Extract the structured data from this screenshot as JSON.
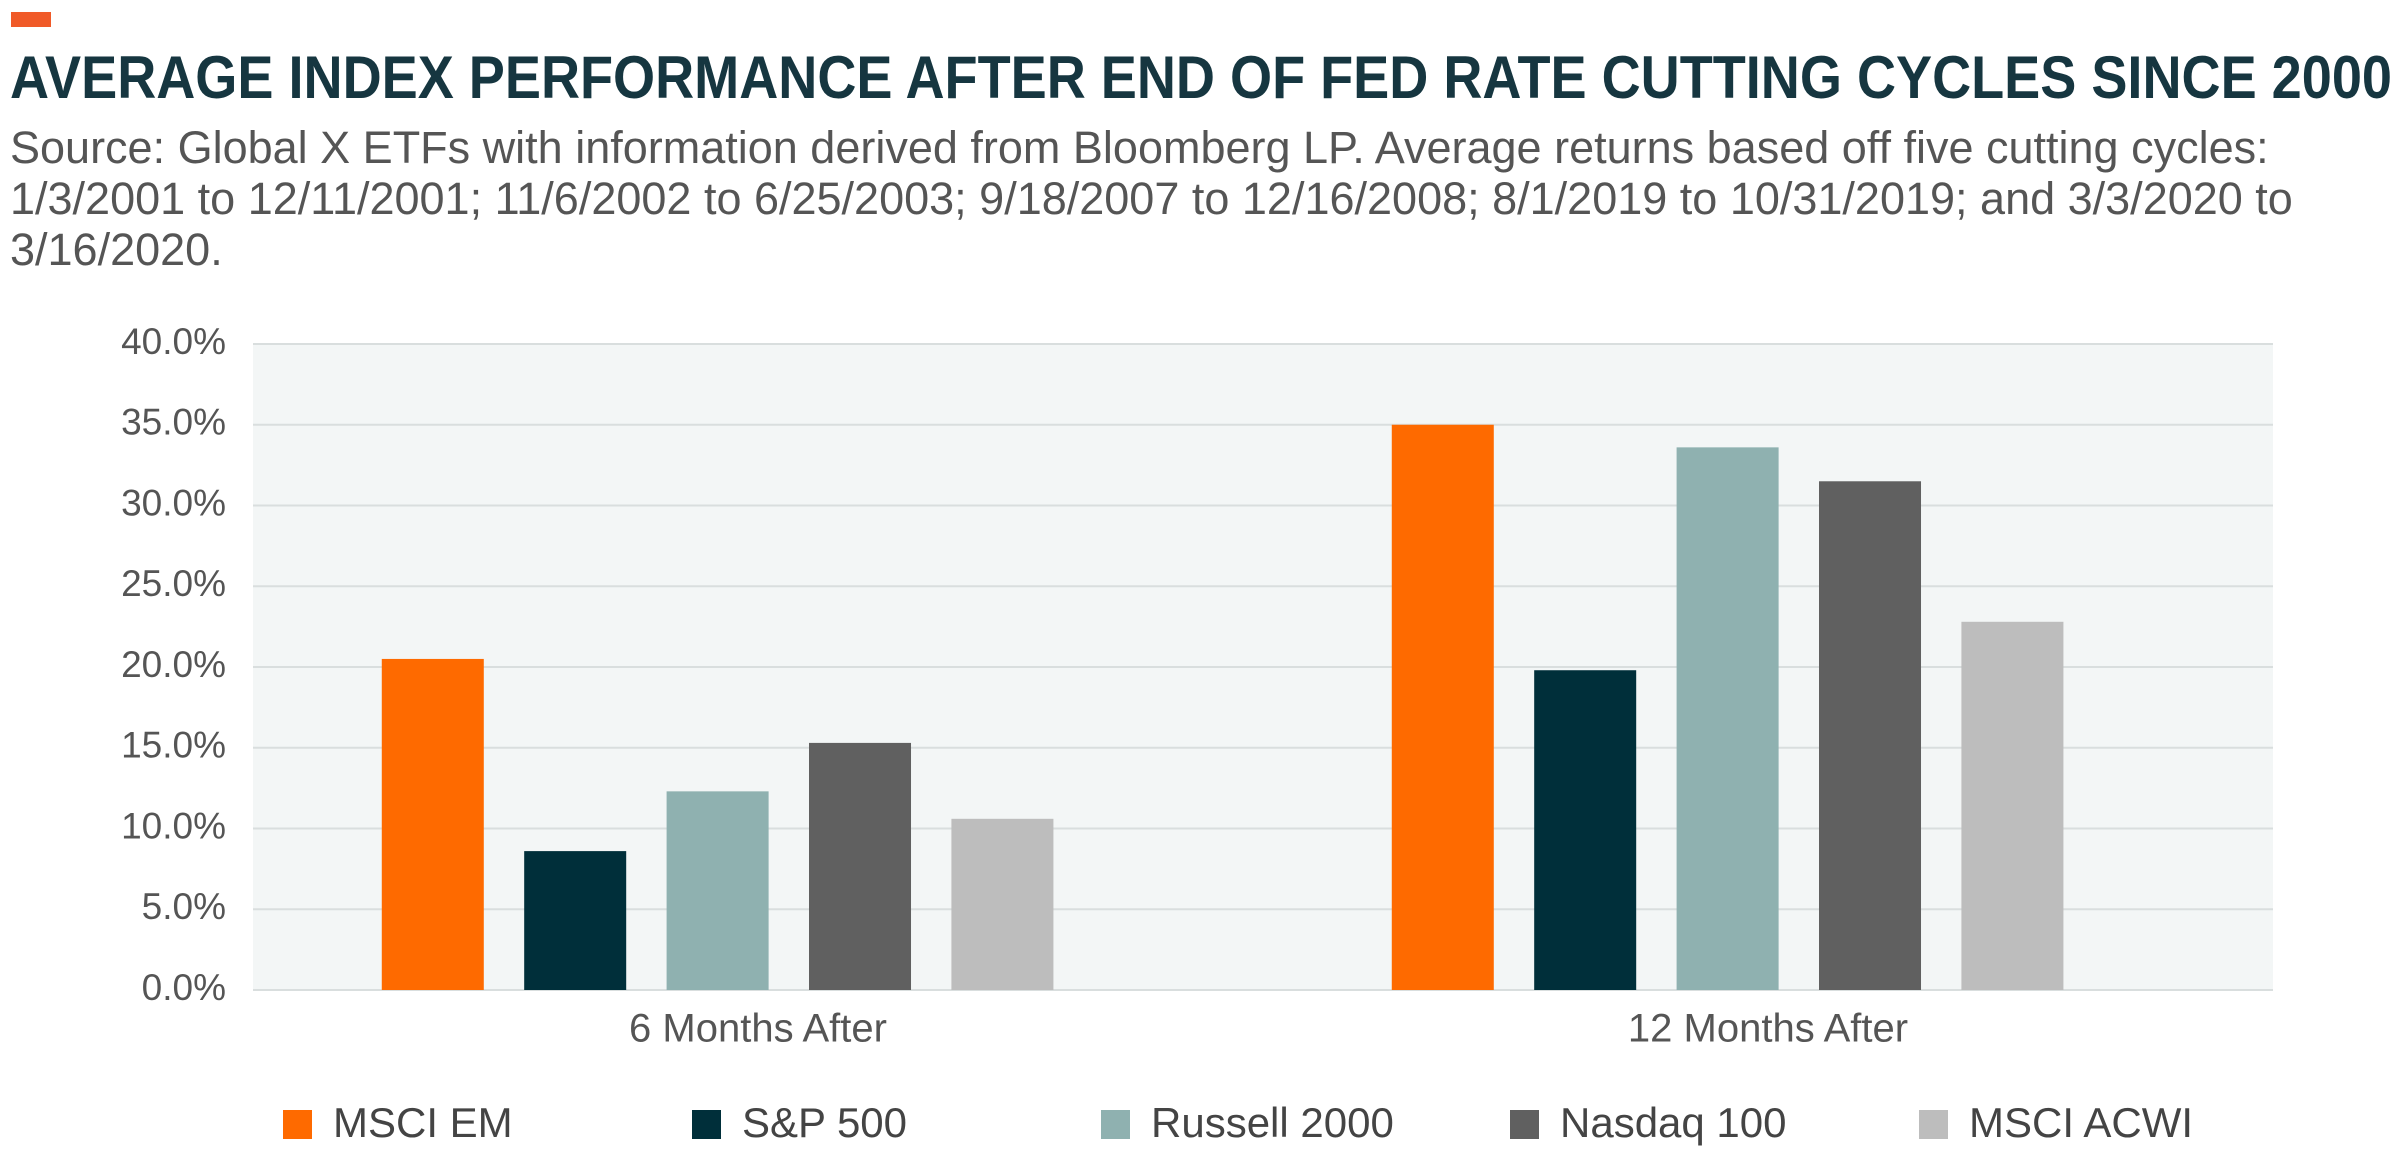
{
  "chart_data": {
    "type": "bar",
    "title": "AVERAGE INDEX PERFORMANCE AFTER END OF FED RATE CUTTING CYCLES SINCE 2000",
    "subtitle": "Source: Global X ETFs with information derived from Bloomberg LP. Average returns based off five cutting cycles: 1/3/2001 to 12/11/2001; 11/6/2002 to 6/25/2003; 9/18/2007 to 12/16/2008; 8/1/2019 to 10/31/2019; and 3/3/2020 to 3/16/2020.",
    "categories": [
      "6 Months After",
      "12 Months After"
    ],
    "series": [
      {
        "name": "MSCI EM",
        "color": "#fe6a00",
        "values": [
          20.5,
          35.0
        ]
      },
      {
        "name": "S&P 500",
        "color": "#002f3a",
        "values": [
          8.6,
          19.8
        ]
      },
      {
        "name": "Russell 2000",
        "color": "#8fb1b0",
        "values": [
          12.3,
          33.6
        ]
      },
      {
        "name": "Nasdaq 100",
        "color": "#606060",
        "values": [
          15.3,
          31.5
        ]
      },
      {
        "name": "MSCI ACWI",
        "color": "#bdbdbd",
        "values": [
          10.6,
          22.8
        ]
      }
    ],
    "ylim": [
      0,
      40
    ],
    "yticks": [
      {
        "value": 0,
        "label": "0.0%"
      },
      {
        "value": 5,
        "label": "5.0%"
      },
      {
        "value": 10,
        "label": "10.0%"
      },
      {
        "value": 15,
        "label": "15.0%"
      },
      {
        "value": 20,
        "label": "20.0%"
      },
      {
        "value": 25,
        "label": "25.0%"
      },
      {
        "value": 30,
        "label": "30.0%"
      },
      {
        "value": 35,
        "label": "35.0%"
      },
      {
        "value": 40,
        "label": "40.0%"
      }
    ],
    "grid": true,
    "legend": "bottom"
  }
}
